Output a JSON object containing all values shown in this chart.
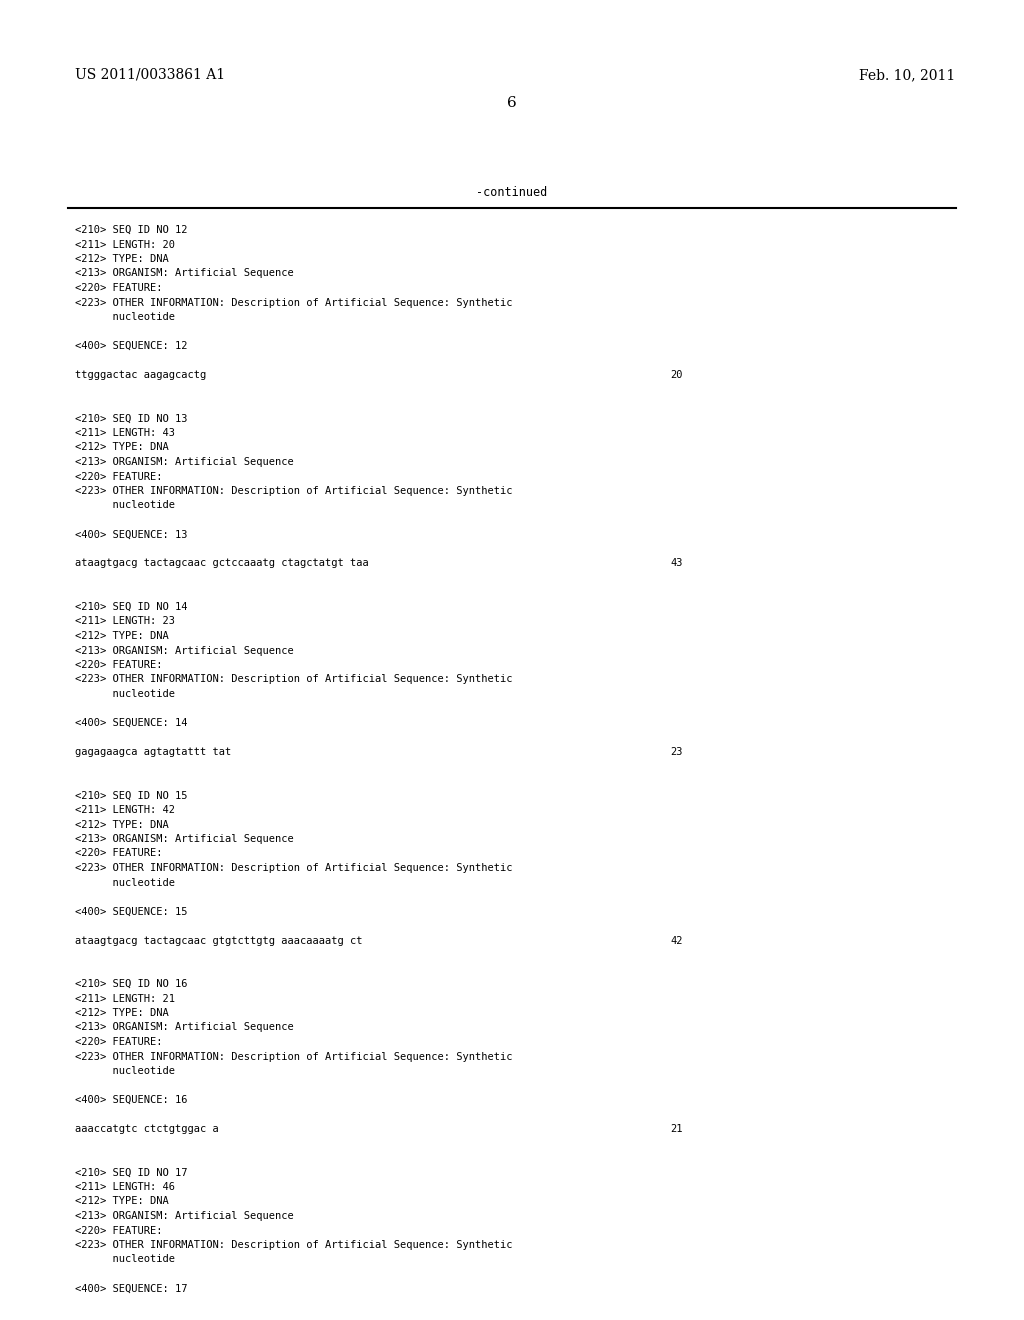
{
  "background_color": "#ffffff",
  "header_left": "US 2011/0033861 A1",
  "header_right": "Feb. 10, 2011",
  "page_number": "6",
  "continued_label": "-continued",
  "content_lines": [
    {
      "text": "<210> SEQ ID NO 12",
      "indent": 0
    },
    {
      "text": "<211> LENGTH: 20",
      "indent": 0
    },
    {
      "text": "<212> TYPE: DNA",
      "indent": 0
    },
    {
      "text": "<213> ORGANISM: Artificial Sequence",
      "indent": 0
    },
    {
      "text": "<220> FEATURE:",
      "indent": 0
    },
    {
      "text": "<223> OTHER INFORMATION: Description of Artificial Sequence: Synthetic",
      "indent": 0
    },
    {
      "text": "      nucleotide",
      "indent": 0
    },
    {
      "text": "",
      "indent": 0
    },
    {
      "text": "<400> SEQUENCE: 12",
      "indent": 0
    },
    {
      "text": "",
      "indent": 0
    },
    {
      "text": "ttgggactac aagagcactg",
      "indent": 0,
      "num": "20"
    },
    {
      "text": "",
      "indent": 0
    },
    {
      "text": "",
      "indent": 0
    },
    {
      "text": "<210> SEQ ID NO 13",
      "indent": 0
    },
    {
      "text": "<211> LENGTH: 43",
      "indent": 0
    },
    {
      "text": "<212> TYPE: DNA",
      "indent": 0
    },
    {
      "text": "<213> ORGANISM: Artificial Sequence",
      "indent": 0
    },
    {
      "text": "<220> FEATURE:",
      "indent": 0
    },
    {
      "text": "<223> OTHER INFORMATION: Description of Artificial Sequence: Synthetic",
      "indent": 0
    },
    {
      "text": "      nucleotide",
      "indent": 0
    },
    {
      "text": "",
      "indent": 0
    },
    {
      "text": "<400> SEQUENCE: 13",
      "indent": 0
    },
    {
      "text": "",
      "indent": 0
    },
    {
      "text": "ataagtgacg tactagcaac gctccaaatg ctagctatgt taa",
      "indent": 0,
      "num": "43"
    },
    {
      "text": "",
      "indent": 0
    },
    {
      "text": "",
      "indent": 0
    },
    {
      "text": "<210> SEQ ID NO 14",
      "indent": 0
    },
    {
      "text": "<211> LENGTH: 23",
      "indent": 0
    },
    {
      "text": "<212> TYPE: DNA",
      "indent": 0
    },
    {
      "text": "<213> ORGANISM: Artificial Sequence",
      "indent": 0
    },
    {
      "text": "<220> FEATURE:",
      "indent": 0
    },
    {
      "text": "<223> OTHER INFORMATION: Description of Artificial Sequence: Synthetic",
      "indent": 0
    },
    {
      "text": "      nucleotide",
      "indent": 0
    },
    {
      "text": "",
      "indent": 0
    },
    {
      "text": "<400> SEQUENCE: 14",
      "indent": 0
    },
    {
      "text": "",
      "indent": 0
    },
    {
      "text": "gagagaagca agtagtattt tat",
      "indent": 0,
      "num": "23"
    },
    {
      "text": "",
      "indent": 0
    },
    {
      "text": "",
      "indent": 0
    },
    {
      "text": "<210> SEQ ID NO 15",
      "indent": 0
    },
    {
      "text": "<211> LENGTH: 42",
      "indent": 0
    },
    {
      "text": "<212> TYPE: DNA",
      "indent": 0
    },
    {
      "text": "<213> ORGANISM: Artificial Sequence",
      "indent": 0
    },
    {
      "text": "<220> FEATURE:",
      "indent": 0
    },
    {
      "text": "<223> OTHER INFORMATION: Description of Artificial Sequence: Synthetic",
      "indent": 0
    },
    {
      "text": "      nucleotide",
      "indent": 0
    },
    {
      "text": "",
      "indent": 0
    },
    {
      "text": "<400> SEQUENCE: 15",
      "indent": 0
    },
    {
      "text": "",
      "indent": 0
    },
    {
      "text": "ataagtgacg tactagcaac gtgtcttgtg aaacaaaatg ct",
      "indent": 0,
      "num": "42"
    },
    {
      "text": "",
      "indent": 0
    },
    {
      "text": "",
      "indent": 0
    },
    {
      "text": "<210> SEQ ID NO 16",
      "indent": 0
    },
    {
      "text": "<211> LENGTH: 21",
      "indent": 0
    },
    {
      "text": "<212> TYPE: DNA",
      "indent": 0
    },
    {
      "text": "<213> ORGANISM: Artificial Sequence",
      "indent": 0
    },
    {
      "text": "<220> FEATURE:",
      "indent": 0
    },
    {
      "text": "<223> OTHER INFORMATION: Description of Artificial Sequence: Synthetic",
      "indent": 0
    },
    {
      "text": "      nucleotide",
      "indent": 0
    },
    {
      "text": "",
      "indent": 0
    },
    {
      "text": "<400> SEQUENCE: 16",
      "indent": 0
    },
    {
      "text": "",
      "indent": 0
    },
    {
      "text": "aaaccatgtc ctctgtggac a",
      "indent": 0,
      "num": "21"
    },
    {
      "text": "",
      "indent": 0
    },
    {
      "text": "",
      "indent": 0
    },
    {
      "text": "<210> SEQ ID NO 17",
      "indent": 0
    },
    {
      "text": "<211> LENGTH: 46",
      "indent": 0
    },
    {
      "text": "<212> TYPE: DNA",
      "indent": 0
    },
    {
      "text": "<213> ORGANISM: Artificial Sequence",
      "indent": 0
    },
    {
      "text": "<220> FEATURE:",
      "indent": 0
    },
    {
      "text": "<223> OTHER INFORMATION: Description of Artificial Sequence: Synthetic",
      "indent": 0
    },
    {
      "text": "      nucleotide",
      "indent": 0
    },
    {
      "text": "",
      "indent": 0
    },
    {
      "text": "<400> SEQUENCE: 17",
      "indent": 0
    }
  ]
}
